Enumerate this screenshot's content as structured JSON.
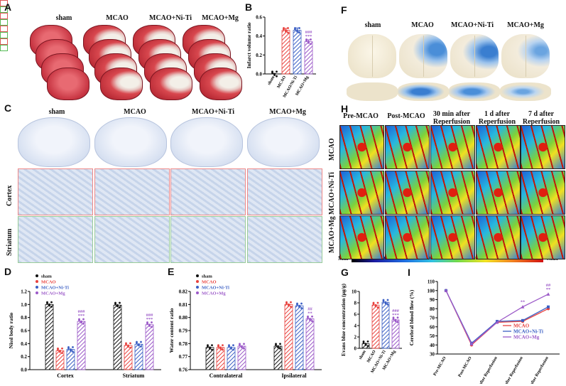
{
  "panels": {
    "A": "A",
    "B": "B",
    "C": "C",
    "D": "D",
    "E": "E",
    "F": "F",
    "G": "G",
    "H": "H",
    "I": "I"
  },
  "groups": {
    "g1": "sham",
    "g2": "MCAO",
    "g3": "MCAO+Ni-Ti",
    "g4": "MCAO+Mg"
  },
  "c_rows": {
    "r1": "Cortex",
    "r2": "Striatum"
  },
  "h_cols": {
    "c1": "Pre-MCAO",
    "c2": "Post-MCAO",
    "c3": "30 min after Reperfusion",
    "c4": "1 d after Reperfusion",
    "c5": "7 d after Reperfusion"
  },
  "h_rows": {
    "r1": "MCAO",
    "r2": "MCAO+Ni-Ti",
    "r3": "MCAO+Mg"
  },
  "scale": {
    "min": "Min",
    "max": "Max"
  },
  "colors": {
    "sham": "#111111",
    "MCAO": "#e8413d",
    "NiTi": "#3b5fc4",
    "Mg": "#9b59c8"
  },
  "chart_data": [
    {
      "id": "B",
      "type": "bar",
      "ylabel": "Infarct volume ratio",
      "ylim": [
        0,
        0.6
      ],
      "yticks": [
        "0.0",
        "0.2",
        "0.4",
        "0.6"
      ],
      "categories": [
        "sham",
        "MCAO",
        "MCAO/Ni-Ti",
        "MCAO+Mg"
      ],
      "values": [
        0.0,
        0.46,
        0.46,
        0.34
      ],
      "errors": [
        0.005,
        0.02,
        0.025,
        0.02
      ],
      "annotations": [
        "",
        "",
        "",
        "###\n***"
      ]
    },
    {
      "id": "D",
      "type": "bar",
      "ylabel": "Nissl body ratio",
      "ylim": [
        0,
        1.2
      ],
      "yticks": [
        "0.0",
        "0.2",
        "0.4",
        "0.6",
        "0.8",
        "1.0",
        "1.2"
      ],
      "categories": [
        "Cortex",
        "Striatum"
      ],
      "legend": [
        "sham",
        "MCAO",
        "MCAO+Ni-Ti",
        "MCAO+Mg"
      ],
      "series": [
        {
          "name": "sham",
          "values": [
            1.0,
            0.99
          ]
        },
        {
          "name": "MCAO",
          "values": [
            0.29,
            0.37
          ]
        },
        {
          "name": "MCAO+Ni-Ti",
          "values": [
            0.31,
            0.39
          ]
        },
        {
          "name": "MCAO+Mg",
          "values": [
            0.74,
            0.69
          ]
        }
      ],
      "annotations": [
        "###\n***",
        "###\n***"
      ]
    },
    {
      "id": "E",
      "type": "bar",
      "ylabel": "Water content ratio",
      "ylim": [
        0.76,
        0.82
      ],
      "yticks": [
        "0.76",
        "0.77",
        "0.78",
        "0.79",
        "0.80",
        "0.81",
        "0.82"
      ],
      "categories": [
        "Contralateral",
        "Ipsilateral"
      ],
      "legend": [
        "sham",
        "MCAO",
        "MCAO+Ni-Ti",
        "MCAO+Mg"
      ],
      "series": [
        {
          "name": "sham",
          "values": [
            0.777,
            0.778
          ]
        },
        {
          "name": "MCAO",
          "values": [
            0.777,
            0.81
          ]
        },
        {
          "name": "MCAO+Ni-Ti",
          "values": [
            0.777,
            0.809
          ]
        },
        {
          "name": "MCAO+Mg",
          "values": [
            0.778,
            0.799
          ]
        }
      ],
      "annotations": [
        "",
        "##\n**"
      ]
    },
    {
      "id": "G",
      "type": "bar",
      "ylabel": "Evans blue concentration (μg/g)",
      "ylim": [
        0,
        10
      ],
      "yticks": [
        "0",
        "2",
        "4",
        "6",
        "8",
        "10"
      ],
      "categories": [
        "sham",
        "MCAO",
        "MCAO+Ni-Ti",
        "MCAO+Mg"
      ],
      "values": [
        0.8,
        7.6,
        8.1,
        5.0
      ],
      "annotations": [
        "",
        "",
        "",
        "###\n***"
      ]
    },
    {
      "id": "I",
      "type": "line",
      "ylabel": "Cerebral blood flow (%)",
      "ylim": [
        30,
        110
      ],
      "yticks": [
        "30",
        "40",
        "50",
        "60",
        "70",
        "80",
        "90",
        "100",
        "110"
      ],
      "categories": [
        "Pre-MCAO",
        "Post-MCAO",
        "30 min after Reperfusion",
        "1 d after Reperfusion",
        "7 d after Reperfusion"
      ],
      "series": [
        {
          "name": "MCAO",
          "values": [
            100,
            40,
            65,
            66,
            80
          ]
        },
        {
          "name": "MCAO+Ni-Ti",
          "values": [
            100,
            42,
            66,
            67,
            82
          ]
        },
        {
          "name": "MCAO+Mg",
          "values": [
            100,
            41,
            65,
            82,
            96
          ]
        }
      ],
      "annotations": [
        "",
        "",
        "",
        "**",
        "##\n**"
      ]
    }
  ]
}
